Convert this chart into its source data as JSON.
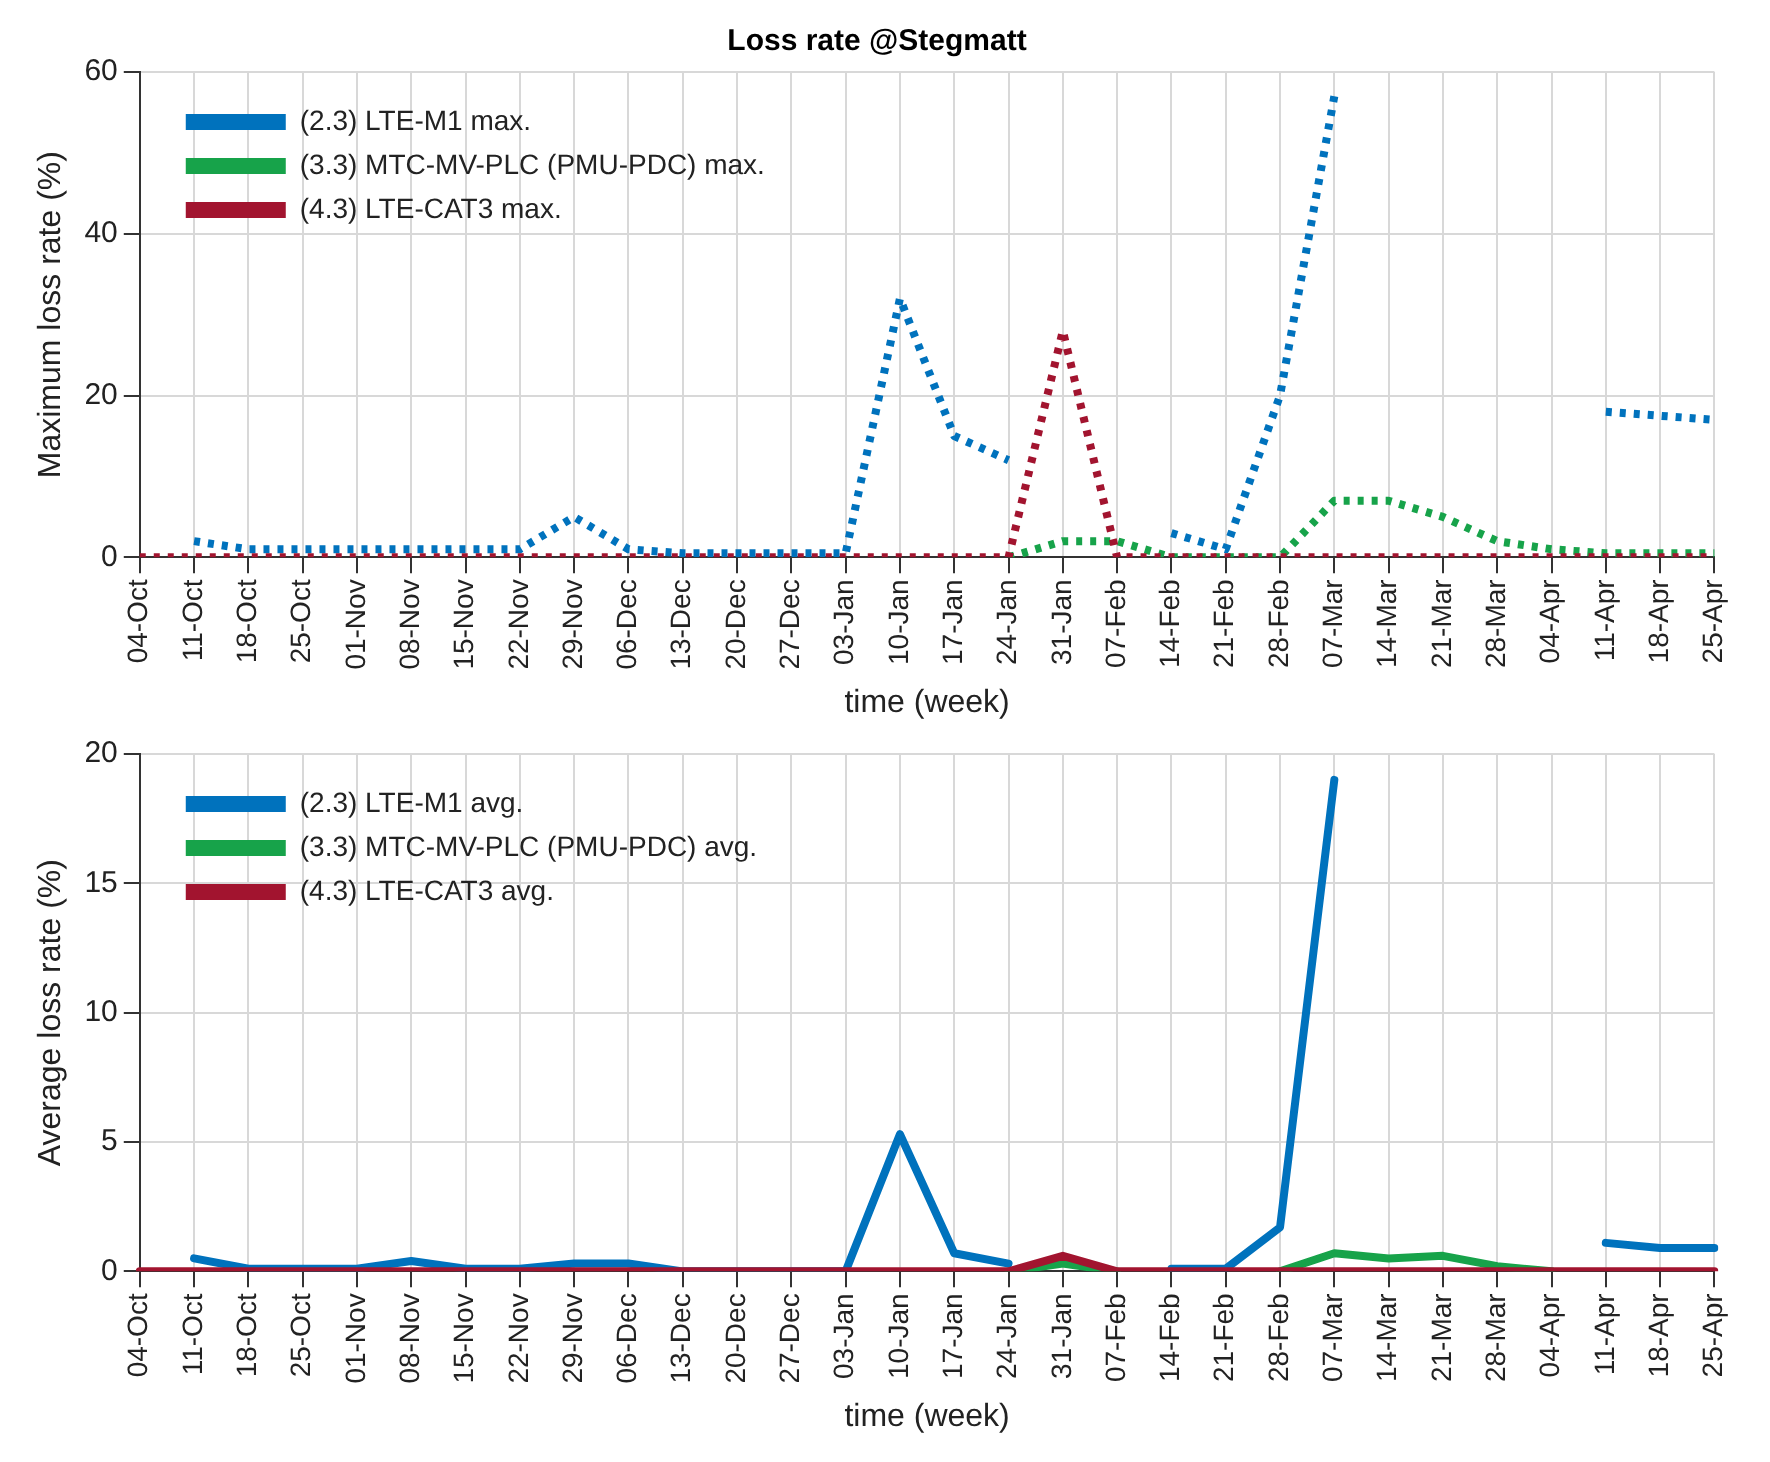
{
  "chart_data": [
    {
      "type": "line",
      "title": "Loss rate @Stegmatt",
      "xlabel": "time (week)",
      "ylabel": "Maximum loss rate (%)",
      "categories": [
        "04-Oct",
        "11-Oct",
        "18-Oct",
        "25-Oct",
        "01-Nov",
        "08-Nov",
        "15-Nov",
        "22-Nov",
        "29-Nov",
        "06-Dec",
        "13-Dec",
        "20-Dec",
        "27-Dec",
        "03-Jan",
        "10-Jan",
        "17-Jan",
        "24-Jan",
        "31-Jan",
        "07-Feb",
        "14-Feb",
        "21-Feb",
        "28-Feb",
        "07-Mar",
        "14-Mar",
        "21-Mar",
        "28-Mar",
        "04-Apr",
        "11-Apr",
        "18-Apr",
        "25-Apr"
      ],
      "series": [
        {
          "name": "(2.3) LTE-M1 max.",
          "color": "#0072bd",
          "values": [
            null,
            2,
            1,
            1,
            1,
            1,
            1,
            1,
            5,
            1,
            0.5,
            0.5,
            0.5,
            0.5,
            32,
            15,
            12,
            null,
            null,
            3,
            1,
            20,
            57,
            null,
            null,
            null,
            null,
            18,
            17.5,
            17
          ]
        },
        {
          "name": "(3.3) MTC-MV-PLC (PMU-PDC) max.",
          "color": "#17a34a",
          "values": [
            null,
            null,
            null,
            null,
            null,
            null,
            null,
            null,
            null,
            null,
            null,
            null,
            null,
            null,
            null,
            null,
            0,
            2,
            2,
            0,
            0,
            0,
            7,
            7,
            5,
            2,
            1,
            0.5,
            0.5,
            0.5
          ]
        },
        {
          "name": "(4.3) LTE-CAT3 max.",
          "color": "#a2142f",
          "values": [
            0,
            0,
            0,
            0,
            0,
            0,
            0,
            0,
            0,
            0,
            0,
            0,
            0,
            0,
            0,
            0,
            0,
            28,
            0,
            0,
            0,
            0,
            0,
            0,
            0,
            0,
            0,
            0,
            0,
            0
          ]
        }
      ],
      "ylim": [
        0,
        60
      ],
      "yticks": [
        0,
        20,
        40,
        60
      ],
      "grid": true,
      "legend": "top left",
      "line_style": "dotted",
      "marker": "none"
    },
    {
      "type": "line",
      "xlabel": "time (week)",
      "ylabel": "Average loss rate (%)",
      "categories": [
        "04-Oct",
        "11-Oct",
        "18-Oct",
        "25-Oct",
        "01-Nov",
        "08-Nov",
        "15-Nov",
        "22-Nov",
        "29-Nov",
        "06-Dec",
        "13-Dec",
        "20-Dec",
        "27-Dec",
        "03-Jan",
        "10-Jan",
        "17-Jan",
        "24-Jan",
        "31-Jan",
        "07-Feb",
        "14-Feb",
        "21-Feb",
        "28-Feb",
        "07-Mar",
        "14-Mar",
        "21-Mar",
        "28-Mar",
        "04-Apr",
        "11-Apr",
        "18-Apr",
        "25-Apr"
      ],
      "series": [
        {
          "name": "(2.3) LTE-M1 avg.",
          "color": "#0072bd",
          "values": [
            null,
            0.5,
            0.1,
            0.1,
            0.1,
            0.4,
            0.1,
            0.1,
            0.3,
            0.3,
            0,
            0,
            0,
            0,
            5.3,
            0.7,
            0.3,
            null,
            null,
            0.1,
            0.1,
            1.7,
            19,
            null,
            null,
            null,
            null,
            1.1,
            0.9,
            0.9
          ]
        },
        {
          "name": "(3.3) MTC-MV-PLC (PMU-PDC) avg.",
          "color": "#17a34a",
          "values": [
            null,
            null,
            null,
            null,
            null,
            null,
            null,
            null,
            null,
            null,
            null,
            null,
            null,
            null,
            null,
            null,
            0,
            0.3,
            0,
            null,
            null,
            0,
            0.7,
            0.5,
            0.6,
            0.2,
            0,
            null,
            null,
            null
          ]
        },
        {
          "name": "(4.3) LTE-CAT3 avg.",
          "color": "#a2142f",
          "values": [
            0,
            0,
            0,
            0,
            0,
            0,
            0,
            0,
            0,
            0,
            0,
            0,
            0,
            0,
            0,
            0,
            0,
            0.6,
            0,
            0,
            0,
            0,
            0,
            0,
            0,
            0,
            0,
            0,
            0,
            0
          ]
        }
      ],
      "ylim": [
        0,
        20
      ],
      "yticks": [
        0,
        5,
        10,
        15,
        20
      ],
      "grid": true,
      "legend": "top left",
      "line_style": "solid",
      "marker": "none"
    }
  ]
}
